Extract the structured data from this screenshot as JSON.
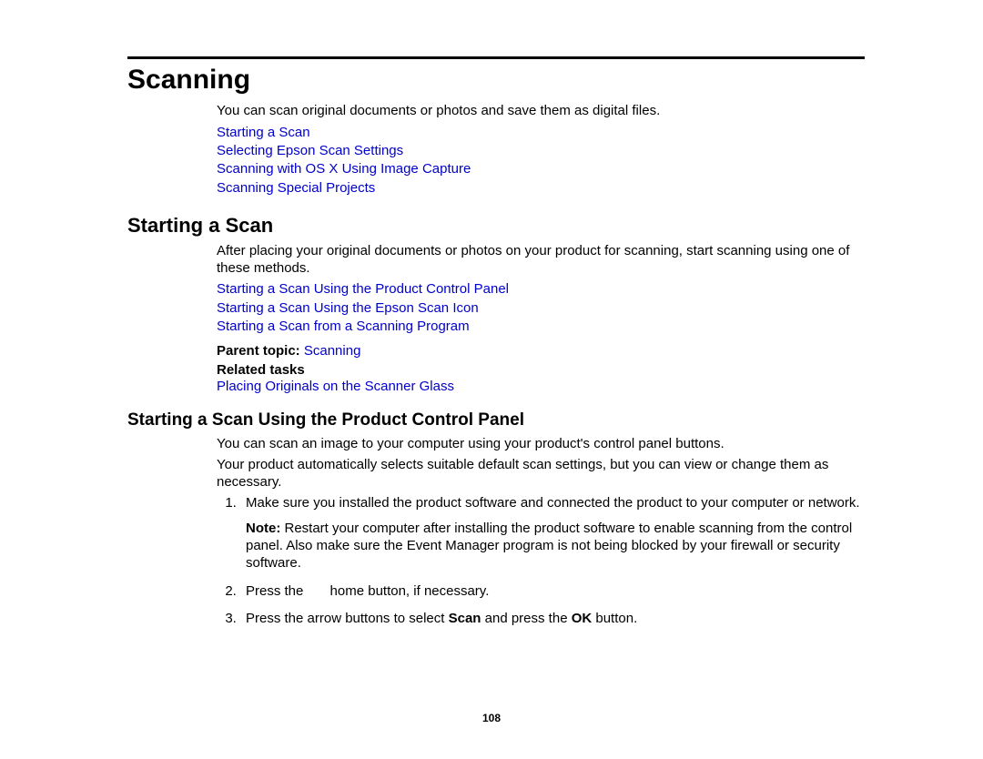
{
  "page_number": "108",
  "colors": {
    "link": "#0000cc",
    "text": "#000000",
    "rule": "#000000",
    "background": "#ffffff"
  },
  "h1": "Scanning",
  "intro": "You can scan original documents or photos and save them as digital files.",
  "top_links": [
    "Starting a Scan",
    "Selecting Epson Scan Settings",
    "Scanning with OS X Using Image Capture",
    "Scanning Special Projects"
  ],
  "h2": "Starting a Scan",
  "sec2_intro": "After placing your original documents or photos on your product for scanning, start scanning using one of these methods.",
  "sec2_links": [
    "Starting a Scan Using the Product Control Panel",
    "Starting a Scan Using the Epson Scan Icon",
    "Starting a Scan from a Scanning Program"
  ],
  "parent_topic_label": "Parent topic:",
  "parent_topic_link": "Scanning",
  "related_tasks_label": "Related tasks",
  "related_tasks_links": [
    "Placing Originals on the Scanner Glass"
  ],
  "h3": "Starting a Scan Using the Product Control Panel",
  "sec3_p1": "You can scan an image to your computer using your product's control panel buttons.",
  "sec3_p2": "Your product automatically selects suitable default scan settings, but you can view or change them as necessary.",
  "step1": "Make sure you installed the product software and connected the product to your computer or network.",
  "note_label": "Note:",
  "note_text": " Restart your computer after installing the product software to enable scanning from the control panel. Also make sure the Event Manager program is not being blocked by your firewall or security software.",
  "step2_a": "Press the ",
  "step2_b": " home button, if necessary.",
  "step3_a": "Press the arrow buttons to select ",
  "step3_scan": "Scan",
  "step3_b": " and press the ",
  "step3_ok": "OK",
  "step3_c": " button."
}
